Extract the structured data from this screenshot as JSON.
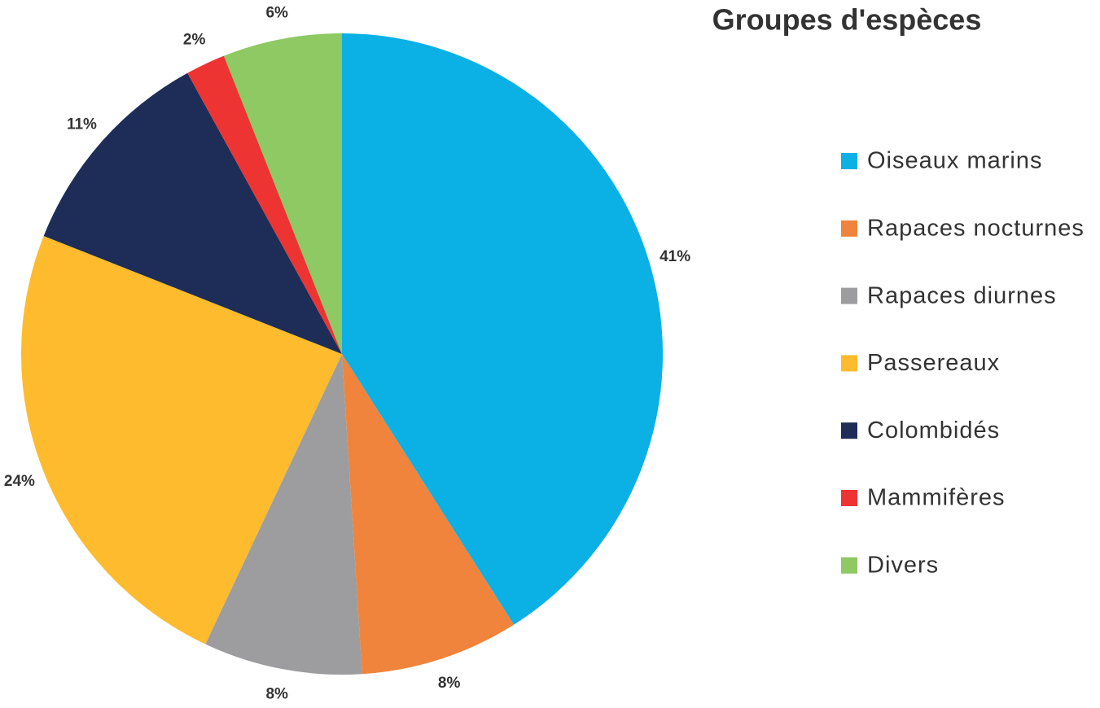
{
  "chart_data": {
    "type": "pie",
    "title": "Groupes d'espèces",
    "categories": [
      "Oiseaux marins",
      "Rapaces nocturnes",
      "Rapaces diurnes",
      "Passereaux",
      "Colombidés",
      "Mammifères",
      "Divers"
    ],
    "values": [
      41,
      8,
      8,
      24,
      11,
      2,
      6
    ],
    "value_labels": [
      "41%",
      "8%",
      "8%",
      "24%",
      "11%",
      "2%",
      "6%"
    ],
    "colors": [
      "#0bb0e5",
      "#f0843c",
      "#9d9d9f",
      "#fdbb2d",
      "#1d2d57",
      "#ee3433",
      "#8ec963"
    ]
  }
}
